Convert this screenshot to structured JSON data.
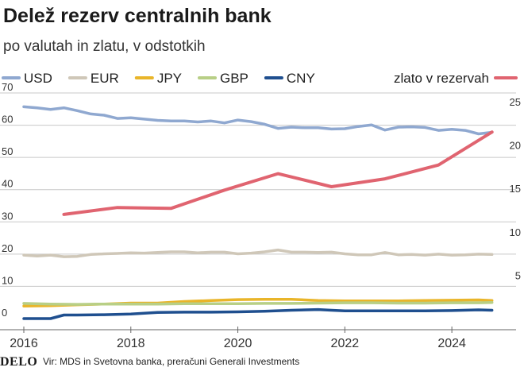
{
  "header": {
    "title": "Delež rezerv centralnih bank",
    "subtitle": "po valutah in zlatu, v odstotkih"
  },
  "footer": {
    "logo": "DELO",
    "source": "Vir: MDS in Svetovna banka, preračuni Generali Investments"
  },
  "colors": {
    "USD": "#8fa8d0",
    "EUR": "#cfc7b8",
    "JPY": "#e9b52a",
    "GBP": "#b8cf86",
    "CNY": "#1f4f8f",
    "gold": "#e06470",
    "grid": "#c8c8c8"
  },
  "chart_data": {
    "type": "line",
    "title": "Delež rezerv centralnih bank",
    "subtitle": "po valutah in zlatu, v odstotkih",
    "x_ticks": [
      "2016",
      "2018",
      "2020",
      "2022",
      "2024"
    ],
    "xlim": [
      2016,
      2025.2
    ],
    "y_left": {
      "ticks": [
        "0",
        "10",
        "20",
        "30",
        "40",
        "50",
        "60",
        "70"
      ],
      "ylim": [
        0,
        70
      ]
    },
    "y_right": {
      "ticks": [
        "5",
        "10",
        "15",
        "20",
        "25"
      ],
      "ylim": [
        0,
        26
      ]
    },
    "grid": true,
    "legend_placement": "top",
    "series": [
      {
        "name": "USD",
        "axis": "left",
        "x": [
          2016.0,
          2016.25,
          2016.5,
          2016.75,
          2017.0,
          2017.25,
          2017.5,
          2017.75,
          2018.0,
          2018.25,
          2018.5,
          2018.75,
          2019.0,
          2019.25,
          2019.5,
          2019.75,
          2020.0,
          2020.25,
          2020.5,
          2020.75,
          2021.0,
          2021.25,
          2021.5,
          2021.75,
          2022.0,
          2022.25,
          2022.5,
          2022.75,
          2023.0,
          2023.25,
          2023.5,
          2023.75,
          2024.0,
          2024.25,
          2024.5,
          2024.75
        ],
        "y": [
          65.7,
          65.4,
          64.9,
          65.4,
          64.5,
          63.5,
          63.1,
          62.1,
          62.3,
          61.9,
          61.5,
          61.3,
          61.3,
          61.0,
          61.3,
          60.7,
          61.6,
          61.1,
          60.3,
          59.0,
          59.4,
          59.2,
          59.2,
          58.8,
          58.9,
          59.6,
          60.1,
          58.5,
          59.4,
          59.5,
          59.3,
          58.4,
          58.7,
          58.4,
          57.3,
          57.8
        ]
      },
      {
        "name": "EUR",
        "axis": "left",
        "x": [
          2016.0,
          2016.25,
          2016.5,
          2016.75,
          2017.0,
          2017.25,
          2017.5,
          2017.75,
          2018.0,
          2018.25,
          2018.5,
          2018.75,
          2019.0,
          2019.25,
          2019.5,
          2019.75,
          2020.0,
          2020.25,
          2020.5,
          2020.75,
          2021.0,
          2021.25,
          2021.5,
          2021.75,
          2022.0,
          2022.25,
          2022.5,
          2022.75,
          2023.0,
          2023.25,
          2023.5,
          2023.75,
          2024.0,
          2024.25,
          2024.5,
          2024.75
        ],
        "y": [
          19.7,
          19.4,
          19.7,
          19.2,
          19.3,
          19.9,
          20.1,
          20.2,
          20.4,
          20.3,
          20.5,
          20.7,
          20.7,
          20.4,
          20.6,
          20.6,
          20.1,
          20.3,
          20.7,
          21.3,
          20.6,
          20.6,
          20.5,
          20.6,
          20.1,
          19.8,
          19.8,
          20.5,
          19.8,
          19.9,
          19.7,
          20.0,
          19.7,
          19.8,
          20.0,
          19.9
        ]
      },
      {
        "name": "JPY",
        "axis": "left",
        "x": [
          2016.0,
          2016.5,
          2017.0,
          2017.5,
          2018.0,
          2018.5,
          2019.0,
          2019.5,
          2020.0,
          2020.5,
          2021.0,
          2021.5,
          2022.0,
          2022.5,
          2023.0,
          2023.5,
          2024.0,
          2024.5,
          2024.75
        ],
        "y": [
          3.9,
          4.0,
          4.3,
          4.5,
          4.8,
          4.8,
          5.3,
          5.6,
          5.9,
          6.0,
          6.0,
          5.6,
          5.5,
          5.5,
          5.5,
          5.6,
          5.7,
          5.8,
          5.6
        ]
      },
      {
        "name": "GBP",
        "axis": "left",
        "x": [
          2016.0,
          2016.5,
          2017.0,
          2017.5,
          2018.0,
          2018.5,
          2019.0,
          2019.5,
          2020.0,
          2020.5,
          2021.0,
          2021.5,
          2022.0,
          2022.5,
          2023.0,
          2023.5,
          2024.0,
          2024.5,
          2024.75
        ],
        "y": [
          4.7,
          4.5,
          4.4,
          4.5,
          4.5,
          4.5,
          4.6,
          4.6,
          4.6,
          4.7,
          4.7,
          4.8,
          4.9,
          4.9,
          4.8,
          4.8,
          4.9,
          4.9,
          5.0
        ]
      },
      {
        "name": "CNY",
        "axis": "left",
        "x": [
          2016.0,
          2016.25,
          2016.5,
          2016.75,
          2017.0,
          2017.5,
          2018.0,
          2018.5,
          2019.0,
          2019.5,
          2020.0,
          2020.5,
          2021.0,
          2021.5,
          2021.75,
          2022.0,
          2022.5,
          2023.0,
          2023.5,
          2024.0,
          2024.5,
          2024.75
        ],
        "y": [
          0.0,
          0.0,
          0.0,
          1.1,
          1.1,
          1.2,
          1.4,
          1.9,
          2.0,
          2.0,
          2.1,
          2.3,
          2.6,
          2.8,
          2.6,
          2.4,
          2.4,
          2.4,
          2.4,
          2.5,
          2.7,
          2.6
        ]
      },
      {
        "name": "zlato v rezervah",
        "axis": "right",
        "x": [
          2016.75,
          2017.75,
          2018.75,
          2019.75,
          2020.75,
          2021.75,
          2022.75,
          2023.75,
          2024.75
        ],
        "y": [
          12.0,
          12.8,
          12.7,
          14.8,
          16.7,
          15.2,
          16.1,
          17.7,
          21.5
        ]
      }
    ]
  }
}
